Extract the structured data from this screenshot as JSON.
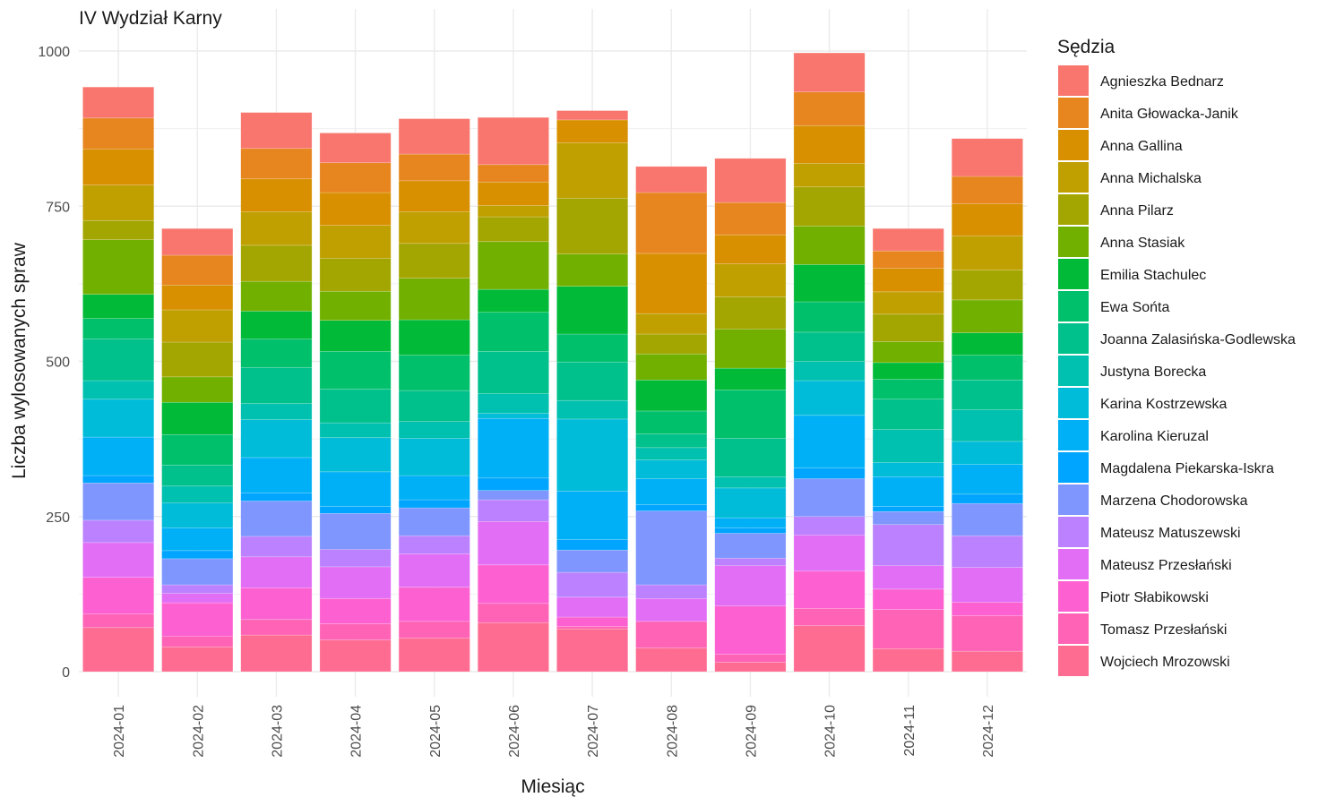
{
  "chart_data": {
    "type": "bar",
    "stacked": true,
    "title": "IV Wydział Karny",
    "xlabel": "Miesiąc",
    "ylabel": "Liczba wylosowanych spraw",
    "legend_title": "Sędzia",
    "legend_position": "right",
    "grid": true,
    "ylim": [
      0,
      1050
    ],
    "yticks": [
      0,
      250,
      500,
      750,
      1000
    ],
    "categories": [
      "2024-01",
      "2024-02",
      "2024-03",
      "2024-04",
      "2024-05",
      "2024-06",
      "2024-07",
      "2024-08",
      "2024-09",
      "2024-10",
      "2024-11",
      "2024-12"
    ],
    "series": [
      {
        "name": "Agnieszka Bednarz",
        "color": "#F8766D",
        "values": [
          50,
          43,
          58,
          48,
          57,
          76,
          15,
          42,
          71,
          63,
          36,
          61
        ]
      },
      {
        "name": "Anita Głowacka-Janik",
        "color": "#E7851E",
        "values": [
          50,
          48,
          49,
          48,
          43,
          28,
          0,
          98,
          52,
          54,
          28,
          44
        ]
      },
      {
        "name": "Anna Gallina",
        "color": "#D89000",
        "values": [
          58,
          40,
          53,
          53,
          50,
          38,
          37,
          97,
          47,
          61,
          38,
          52
        ]
      },
      {
        "name": "Anna Michalska",
        "color": "#BFA000",
        "values": [
          57,
          52,
          54,
          53,
          51,
          18,
          89,
          33,
          53,
          38,
          36,
          55
        ]
      },
      {
        "name": "Anna Pilarz",
        "color": "#A3A500",
        "values": [
          31,
          56,
          58,
          53,
          56,
          40,
          90,
          32,
          52,
          63,
          44,
          48
        ]
      },
      {
        "name": "Anna Stasiak",
        "color": "#72B000",
        "values": [
          88,
          41,
          48,
          47,
          67,
          77,
          52,
          42,
          63,
          62,
          34,
          53
        ]
      },
      {
        "name": "Emilia Stachulec",
        "color": "#00BA38",
        "values": [
          39,
          52,
          45,
          50,
          57,
          37,
          77,
          50,
          35,
          60,
          27,
          36
        ]
      },
      {
        "name": "Ewa Sońta",
        "color": "#00C06B",
        "values": [
          33,
          49,
          46,
          61,
          57,
          63,
          45,
          37,
          78,
          49,
          32,
          40
        ]
      },
      {
        "name": "Joanna Zalasińska-Godlewska",
        "color": "#00C08B",
        "values": [
          67,
          34,
          58,
          54,
          50,
          68,
          62,
          22,
          62,
          47,
          49,
          48
        ]
      },
      {
        "name": "Justyna Borecka",
        "color": "#00C0AF",
        "values": [
          30,
          27,
          26,
          24,
          27,
          32,
          30,
          20,
          18,
          31,
          53,
          51
        ]
      },
      {
        "name": "Karina Kostrzewska",
        "color": "#00BCD8",
        "values": [
          61,
          40,
          61,
          55,
          60,
          8,
          116,
          30,
          48,
          56,
          23,
          37
        ]
      },
      {
        "name": "Karolina Kieruzal",
        "color": "#00B0F6",
        "values": [
          62,
          37,
          57,
          56,
          39,
          96,
          78,
          42,
          16,
          85,
          48,
          48
        ]
      },
      {
        "name": "Magdalena Piekarska-Iskra",
        "color": "#00A5FF",
        "values": [
          12,
          13,
          13,
          11,
          13,
          20,
          17,
          10,
          9,
          17,
          8,
          15
        ]
      },
      {
        "name": "Marzena Chodorowska",
        "color": "#7F96FF",
        "values": [
          60,
          42,
          57,
          58,
          45,
          15,
          36,
          119,
          40,
          61,
          21,
          52
        ]
      },
      {
        "name": "Mateusz Matuszewski",
        "color": "#BC81FF",
        "values": [
          36,
          14,
          33,
          28,
          29,
          35,
          40,
          22,
          12,
          30,
          66,
          51
        ]
      },
      {
        "name": "Mateusz Przesłański",
        "color": "#E36EF6",
        "values": [
          56,
          15,
          50,
          51,
          54,
          70,
          32,
          37,
          65,
          58,
          38,
          56
        ]
      },
      {
        "name": "Piotr Słabikowski",
        "color": "#FD61D1",
        "values": [
          59,
          54,
          51,
          41,
          55,
          62,
          15,
          0,
          78,
          60,
          33,
          22
        ]
      },
      {
        "name": "Tomasz Przesłański",
        "color": "#FF63B6",
        "values": [
          22,
          17,
          25,
          26,
          27,
          31,
          4,
          43,
          13,
          28,
          63,
          57
        ]
      },
      {
        "name": "Wojciech Mrozowski",
        "color": "#FF6C91",
        "values": [
          71,
          40,
          59,
          51,
          54,
          79,
          69,
          38,
          15,
          74,
          37,
          33
        ]
      }
    ]
  }
}
